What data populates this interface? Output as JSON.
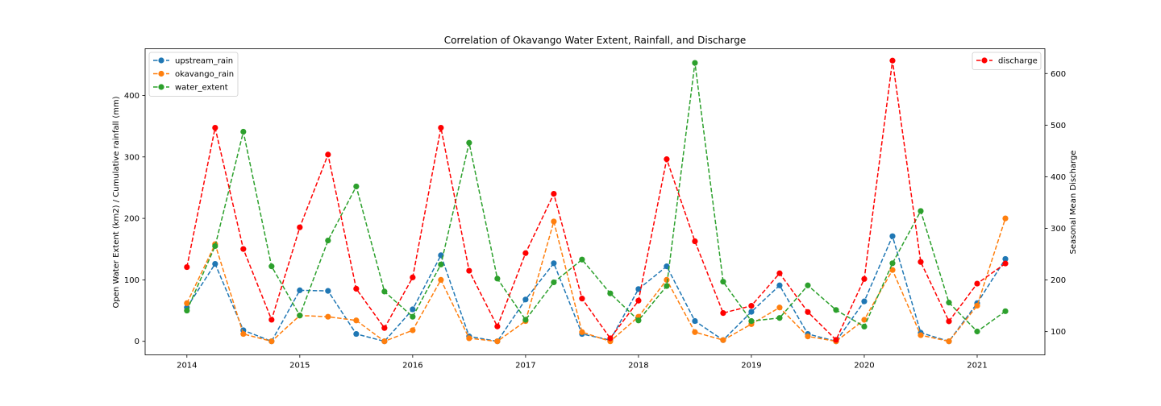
{
  "chart_data": {
    "type": "line",
    "title": "Correlation of Okavango Water Extent, Rainfall, and Discharge",
    "xlabel": "",
    "ylabel_left": "Open Water Extent (km2) / Cumulative rainfall (mm)",
    "ylabel_right": "Seasonal Mean Discharge",
    "xlim": [
      2013.63,
      2021.6
    ],
    "ylim_left": [
      -22,
      476
    ],
    "ylim_right": [
      55,
      648
    ],
    "x_ticks": [
      2014,
      2015,
      2016,
      2017,
      2018,
      2019,
      2020,
      2021
    ],
    "x_tick_labels": [
      "2014",
      "2015",
      "2016",
      "2017",
      "2018",
      "2019",
      "2020",
      "2021"
    ],
    "y_left_ticks": [
      0,
      100,
      200,
      300,
      400
    ],
    "y_left_tick_labels": [
      "0",
      "100",
      "200",
      "300",
      "400"
    ],
    "y_right_ticks": [
      100,
      200,
      300,
      400,
      500,
      600
    ],
    "y_right_tick_labels": [
      "100",
      "200",
      "300",
      "400",
      "500",
      "600"
    ],
    "x": [
      2014.0,
      2014.25,
      2014.5,
      2014.75,
      2015.0,
      2015.25,
      2015.5,
      2015.75,
      2016.0,
      2016.25,
      2016.5,
      2016.75,
      2017.0,
      2017.25,
      2017.5,
      2017.75,
      2018.0,
      2018.25,
      2018.5,
      2018.75,
      2019.0,
      2019.25,
      2019.5,
      2019.75,
      2020.0,
      2020.25,
      2020.5,
      2020.75,
      2021.0,
      2021.25
    ],
    "series": [
      {
        "name": "upstream_rain",
        "axis": "left",
        "color": "#1f77b4",
        "values": [
          55,
          126,
          18,
          0,
          83,
          82,
          12,
          0,
          52,
          140,
          8,
          0,
          68,
          127,
          12,
          2,
          85,
          122,
          33,
          2,
          48,
          91,
          12,
          0,
          65,
          171,
          14,
          0,
          62,
          134
        ]
      },
      {
        "name": "okavango_rain",
        "axis": "left",
        "color": "#ff7f0e",
        "values": [
          62,
          158,
          12,
          0,
          42,
          40,
          34,
          0,
          18,
          100,
          5,
          0,
          33,
          195,
          15,
          0,
          40,
          100,
          15,
          2,
          28,
          55,
          8,
          0,
          35,
          116,
          10,
          0,
          58,
          200
        ]
      },
      {
        "name": "water_extent",
        "axis": "left",
        "color": "#2ca02c",
        "values": [
          50,
          155,
          341,
          122,
          42,
          164,
          252,
          81,
          40,
          125,
          323,
          102,
          35,
          96,
          133,
          78,
          34,
          90,
          453,
          97,
          33,
          38,
          91,
          51,
          24,
          127,
          212,
          63,
          16,
          49
        ]
      },
      {
        "name": "discharge",
        "axis": "right",
        "color": "#ff0000",
        "values": [
          225,
          495,
          260,
          123,
          302,
          443,
          183,
          107,
          205,
          495,
          218,
          110,
          252,
          367,
          164,
          87,
          160,
          434,
          275,
          136,
          150,
          213,
          138,
          84,
          202,
          625,
          235,
          120,
          193,
          232
        ]
      }
    ],
    "legend_left": [
      "upstream_rain",
      "okavango_rain",
      "water_extent"
    ],
    "legend_right": [
      "discharge"
    ],
    "legend_left_placement": "upper-left",
    "legend_right_placement": "upper-right",
    "grid": false
  }
}
